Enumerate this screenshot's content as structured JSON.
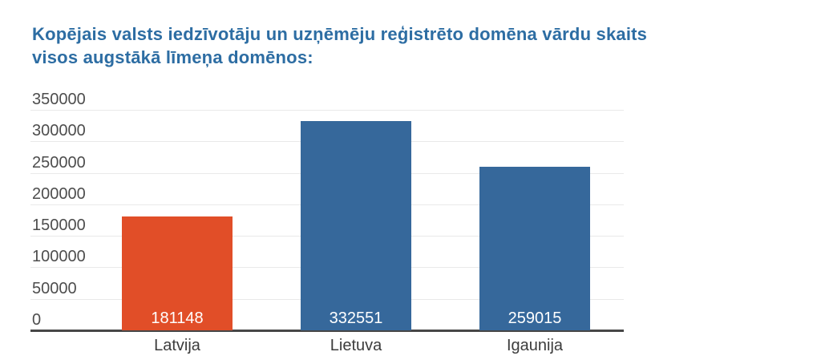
{
  "page": {
    "background": "#ffffff"
  },
  "header": {
    "title_line1": "Kopējais valsts iedzīvotāju un uzņēmēju reģistrēto domēna vārdu skaits",
    "title_line2": "visos augstākā līmeņa domēnos:",
    "title_color": "#2d6da3"
  },
  "chart_data": {
    "type": "bar",
    "title": "Kopējais valsts iedzīvotāju un uzņēmēju reģistrēto domēna vārdu skaits visos augstākā līmeņa domēnos:",
    "categories": [
      "Latvija",
      "Lietuva",
      "Igaunija"
    ],
    "values": [
      181148,
      332551,
      259015
    ],
    "value_labels": [
      "181148",
      "332551",
      "259015"
    ],
    "bar_colors": [
      "#e14e28",
      "#36689b",
      "#36689b"
    ],
    "y_ticks": [
      0,
      50000,
      100000,
      150000,
      200000,
      250000,
      300000,
      350000
    ],
    "ylim": [
      0,
      350000
    ],
    "xlabel": "",
    "ylabel": "",
    "legend": "none",
    "grid": true,
    "colors": {
      "grid_line": "#e9e9e9",
      "axis_line": "#474747",
      "tick_label": "#4d4d4d",
      "category_label": "#3c3c3c",
      "value_label": "#ffffff"
    }
  }
}
